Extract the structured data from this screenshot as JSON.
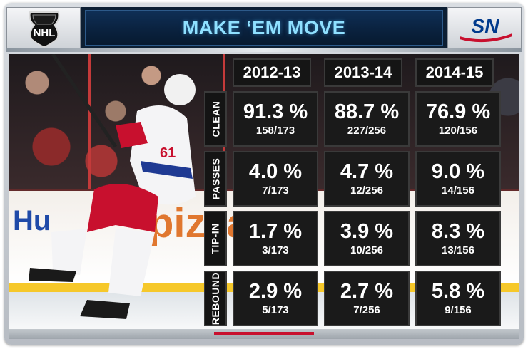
{
  "header": {
    "title": "MAKE ‘EM MOVE",
    "left_logo": "NHL",
    "right_logo": "SN"
  },
  "background": {
    "board_text_left": "Hu",
    "board_text_mid": "pizza",
    "jersey_number": "61"
  },
  "colors": {
    "title": "#8fe0ff",
    "header_bg": "#0d1f33",
    "cell_bg": "#1a1a1a",
    "sn_red": "#c8102e",
    "sn_blue": "#003a8c"
  },
  "chart_data": {
    "type": "table",
    "title": "MAKE ‘EM MOVE",
    "columns": [
      "2012-13",
      "2013-14",
      "2014-15"
    ],
    "rows": [
      {
        "label": "CLEAN",
        "cells": [
          {
            "pct": "91.3 %",
            "frac": "158/173"
          },
          {
            "pct": "88.7 %",
            "frac": "227/256"
          },
          {
            "pct": "76.9 %",
            "frac": "120/156"
          }
        ]
      },
      {
        "label": "PASSES",
        "cells": [
          {
            "pct": "4.0 %",
            "frac": "7/173"
          },
          {
            "pct": "4.7 %",
            "frac": "12/256"
          },
          {
            "pct": "9.0 %",
            "frac": "14/156"
          }
        ]
      },
      {
        "label": "TIP-IN",
        "cells": [
          {
            "pct": "1.7 %",
            "frac": "3/173"
          },
          {
            "pct": "3.9 %",
            "frac": "10/256"
          },
          {
            "pct": "8.3 %",
            "frac": "13/156"
          }
        ]
      },
      {
        "label": "REBOUND",
        "cells": [
          {
            "pct": "2.9 %",
            "frac": "5/173"
          },
          {
            "pct": "2.7 %",
            "frac": "7/256"
          },
          {
            "pct": "5.8 %",
            "frac": "9/156"
          }
        ]
      }
    ]
  }
}
